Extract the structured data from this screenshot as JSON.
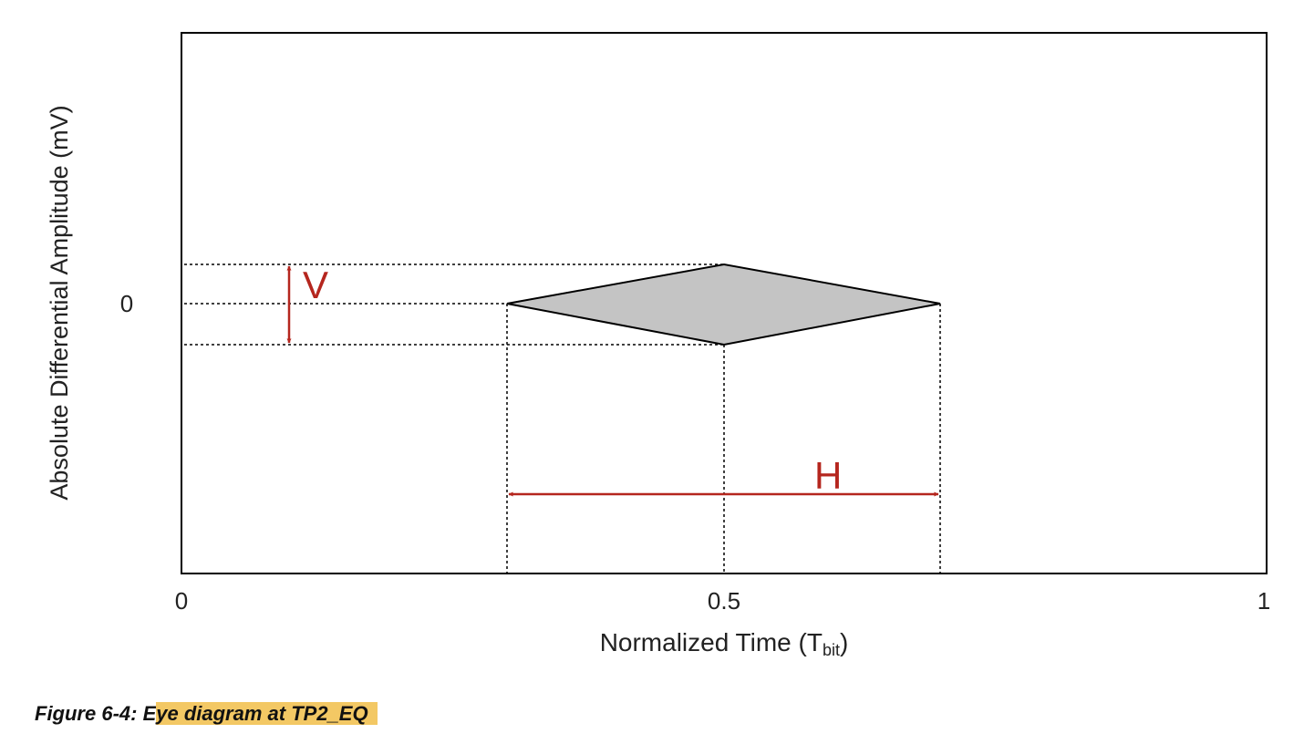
{
  "diagram": {
    "y_axis_label": "Absolute Differential Amplitude (mV)",
    "y_tick_zero": "0",
    "x_axis_label_main": "Normalized Time (T",
    "x_axis_label_sub": "bit",
    "x_axis_label_close": ")",
    "x_ticks": [
      "0",
      "0.5",
      "1"
    ],
    "v_label": "V",
    "h_label": "H",
    "accent_color": "#b5261e",
    "eye_fill": "#c4c4c4"
  },
  "caption": {
    "prefix": "Figure 6-4: E",
    "highlight": "ye diagram at TP2_EQ"
  }
}
